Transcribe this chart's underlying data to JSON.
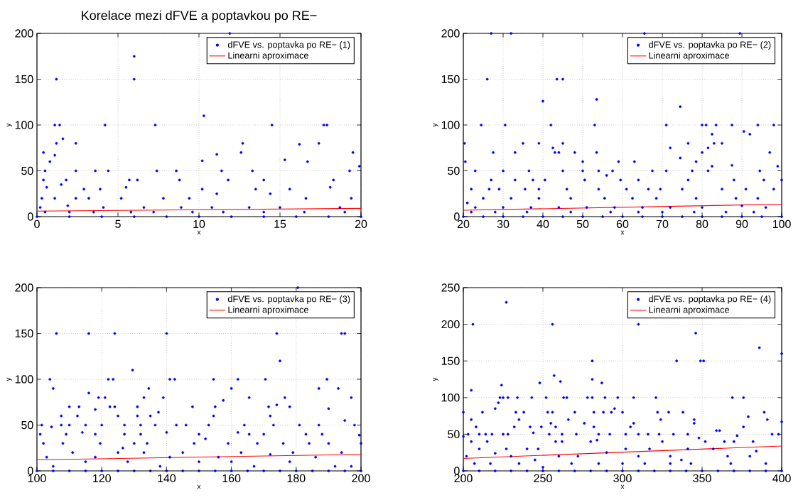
{
  "chart_data": [
    {
      "type": "scatter",
      "title": "Korelace mezi dFVE a poptavkou po RE−",
      "xlabel": "x",
      "ylabel": "y",
      "xlim": [
        0,
        20
      ],
      "ylim": [
        0,
        200
      ],
      "xticks": [
        0,
        5,
        10,
        15,
        20
      ],
      "yticks": [
        0,
        50,
        100,
        150,
        200
      ],
      "grid": true,
      "legend": "top right",
      "series": [
        {
          "name": "dFVE vs. poptavka po RE− (1)",
          "color": "#0000ff",
          "marker": "circle",
          "x": [
            1.2,
            6,
            6,
            11.9,
            1.1,
            1.4,
            4.2,
            7.3,
            10.3,
            14.5,
            17.7,
            17.9,
            1.6,
            1.2,
            2.4,
            12.7,
            17.4,
            16.2,
            0.4,
            1.1,
            0.8,
            10.2,
            11.1,
            12.6,
            15.3,
            16.7,
            19.5,
            19.9,
            0.5,
            2.4,
            3.6,
            4.4,
            7.4,
            8.6,
            11.4,
            13.3,
            19.3,
            0.4,
            1.8,
            5.7,
            6.2,
            8.8,
            11.8,
            14,
            18.3,
            0.6,
            1.5,
            2.9,
            3.9,
            5.5,
            10.2,
            13.5,
            15.6,
            18.1,
            0.3,
            1.1,
            2.4,
            3.2,
            5.2,
            7.8,
            9.4,
            11.1,
            14.4,
            16.6,
            19.4,
            0.2,
            1.9,
            4.1,
            6.6,
            8.9,
            10.8,
            13.1,
            15,
            18.7,
            0.5,
            2,
            3.5,
            5.8,
            7.2,
            9.6,
            11.5,
            14,
            16.5,
            19,
            0,
            2,
            4,
            6,
            8,
            10,
            12,
            14,
            16,
            18,
            20
          ],
          "values": [
            150,
            175,
            150,
            200,
            100,
            100,
            100,
            100,
            110,
            100,
            100,
            100,
            85,
            80,
            80,
            80,
            80,
            79,
            70,
            67,
            60,
            61,
            68,
            70,
            62,
            60,
            70,
            55,
            50,
            50,
            50,
            50,
            50,
            50,
            50,
            50,
            50,
            40,
            40,
            40,
            40,
            40,
            40,
            40,
            40,
            32,
            35,
            30,
            30,
            32,
            30,
            30,
            30,
            32,
            20,
            20,
            20,
            20,
            20,
            20,
            20,
            25,
            25,
            20,
            20,
            10,
            12,
            10,
            10,
            10,
            10,
            10,
            10,
            10,
            5,
            5,
            5,
            5,
            5,
            5,
            5,
            5,
            5,
            5,
            0,
            0,
            0,
            0,
            0,
            0,
            0,
            0,
            0,
            0,
            0
          ]
        },
        {
          "type": "line",
          "name": "Linearni aproximace",
          "color": "#ff0000",
          "marker": "none",
          "line_style": "solid",
          "x": [
            0,
            20
          ],
          "values": [
            6,
            9
          ]
        }
      ]
    },
    {
      "type": "scatter",
      "xlabel": "x",
      "ylabel": "y",
      "xlim": [
        20,
        100
      ],
      "ylim": [
        0,
        200
      ],
      "xticks": [
        20,
        30,
        40,
        50,
        60,
        70,
        80,
        90,
        100
      ],
      "yticks": [
        0,
        50,
        100,
        150,
        200
      ],
      "grid": true,
      "legend": "top right",
      "series": [
        {
          "name": "dFVE vs. poptavka po RE− (2)",
          "color": "#0000ff",
          "marker": "circle",
          "x": [
            27,
            32,
            65.5,
            89.5,
            26,
            43.5,
            45,
            53.5,
            40,
            74.5,
            24.5,
            30.5,
            42,
            53,
            71,
            80,
            81,
            83.5,
            87.5,
            94,
            98,
            90.5,
            82.5,
            92,
            20.3,
            35,
            39,
            45,
            76.5,
            83,
            85,
            42.5,
            72,
            81.5,
            27.5,
            33,
            43,
            44,
            48,
            53.5,
            80,
            97,
            74.5,
            20.5,
            50,
            59,
            63,
            78.5,
            82.5,
            99,
            87.5,
            23,
            30,
            36.5,
            45,
            50,
            54,
            57.5,
            67.5,
            71,
            77.5,
            81.5,
            94.5,
            27,
            33,
            37.5,
            40.5,
            50.5,
            59.5,
            64,
            76.5,
            88,
            95.5,
            100,
            56,
            22,
            26.5,
            29,
            35.5,
            39,
            46,
            54,
            61,
            66.5,
            69.5,
            75,
            85,
            91,
            98,
            25,
            32,
            39,
            47,
            55.5,
            62.5,
            68.5,
            78.5,
            88.5,
            94,
            21,
            23,
            30,
            37,
            44,
            51,
            58,
            65,
            72,
            80,
            96,
            90,
            22,
            28,
            36,
            47,
            57,
            64,
            70,
            78,
            86,
            93,
            20,
            25,
            30,
            35,
            40,
            45,
            50,
            55,
            60,
            65,
            70,
            75,
            80,
            85,
            90,
            95,
            100
          ],
          "values": [
            200,
            200,
            200,
            200,
            150,
            150,
            150,
            128,
            126,
            120,
            100,
            100,
            100,
            100,
            100,
            100,
            100,
            100,
            100,
            100,
            100,
            93,
            90,
            90,
            80,
            80,
            80,
            80,
            80,
            80,
            80,
            75,
            75,
            75,
            70,
            70,
            70,
            70,
            70,
            70,
            70,
            70,
            64,
            60,
            60,
            60,
            60,
            60,
            55,
            55,
            56,
            50,
            50,
            50,
            50,
            50,
            50,
            50,
            50,
            50,
            50,
            50,
            50,
            40,
            40,
            40,
            40,
            40,
            40,
            40,
            40,
            40,
            40,
            40,
            45,
            30,
            30,
            30,
            30,
            30,
            30,
            30,
            30,
            30,
            30,
            30,
            30,
            30,
            30,
            20,
            20,
            20,
            20,
            20,
            20,
            20,
            20,
            20,
            20,
            15,
            10,
            10,
            10,
            10,
            10,
            10,
            10,
            10,
            10,
            10,
            12,
            5,
            5,
            5,
            5,
            5,
            5,
            5,
            5,
            5,
            5,
            0,
            0,
            0,
            0,
            0,
            0,
            0,
            0,
            0,
            0,
            0,
            0,
            0,
            0,
            0,
            0,
            0
          ]
        },
        {
          "type": "line",
          "name": "Linearni aproximace",
          "color": "#ff0000",
          "marker": "none",
          "line_style": "solid",
          "x": [
            20,
            100
          ],
          "values": [
            7,
            13.5
          ]
        }
      ]
    },
    {
      "type": "scatter",
      "xlabel": "x",
      "ylabel": "y",
      "xlim": [
        100,
        200
      ],
      "ylim": [
        0,
        200
      ],
      "xticks": [
        100,
        120,
        140,
        160,
        180,
        200
      ],
      "yticks": [
        0,
        50,
        100,
        150,
        200
      ],
      "grid": true,
      "legend": "top right",
      "series": [
        {
          "name": "dFVE vs. poptavka po RE− (3)",
          "color": "#0000ff",
          "marker": "circle",
          "x": [
            180.5,
            106,
            116,
            124,
            140,
            174,
            194,
            195,
            175,
            129.5,
            104,
            122,
            123.5,
            141,
            142.5,
            154.5,
            162,
            170.5,
            189.5,
            105,
            134.5,
            160,
            187,
            193,
            116,
            119,
            121,
            133,
            139,
            165.5,
            176.5,
            197,
            157.5,
            110,
            113,
            122.5,
            124,
            131,
            148,
            155,
            171.5,
            178,
            174,
            190,
            118,
            137.5,
            107.5,
            112.5,
            125,
            131,
            135,
            154.5,
            172,
            195,
            101.5,
            107.5,
            110,
            115,
            120,
            127,
            132,
            136.5,
            143,
            146,
            153,
            164,
            173,
            181,
            187,
            198,
            104.5,
            101,
            109,
            118,
            127,
            132,
            150,
            165.5,
            170,
            183,
            188,
            114,
            140,
            162,
            199.5,
            102,
            108,
            119.5,
            130,
            134,
            148.5,
            159,
            168,
            176,
            184,
            190,
            200,
            126.5,
            152,
            111,
            125,
            133,
            145,
            163,
            179,
            194,
            172,
            103,
            118,
            141,
            156,
            186,
            115,
            128,
            150,
            160,
            178,
            105,
            138,
            167,
            192,
            197,
            100,
            105,
            110,
            115,
            120,
            125,
            130,
            135,
            140,
            145,
            150,
            155,
            160,
            165,
            170,
            175,
            180,
            185,
            190,
            195,
            200
          ],
          "values": [
            200,
            150,
            150,
            150,
            150,
            150,
            150,
            150,
            120,
            110,
            100,
            100,
            100,
            100,
            100,
            100,
            100,
            100,
            100,
            90,
            90,
            90,
            90,
            90,
            85,
            80,
            80,
            80,
            80,
            80,
            80,
            80,
            77,
            70,
            70,
            70,
            70,
            70,
            70,
            70,
            70,
            70,
            72,
            68,
            67,
            64,
            60,
            60,
            60,
            60,
            60,
            60,
            60,
            55,
            50,
            50,
            50,
            50,
            50,
            50,
            50,
            50,
            50,
            50,
            50,
            50,
            50,
            50,
            50,
            50,
            48,
            40,
            40,
            40,
            40,
            40,
            40,
            40,
            40,
            40,
            40,
            42,
            42,
            42,
            39,
            30,
            30,
            30,
            30,
            30,
            30,
            30,
            30,
            30,
            30,
            30,
            30,
            25,
            35,
            20,
            20,
            20,
            20,
            20,
            20,
            20,
            18,
            15,
            15,
            15,
            15,
            15,
            10,
            10,
            10,
            10,
            10,
            5,
            5,
            5,
            5,
            5,
            0,
            0,
            0,
            0,
            0,
            0,
            0,
            0,
            0,
            0,
            0,
            0,
            0,
            0,
            0,
            0,
            0,
            0,
            0,
            0,
            0
          ]
        },
        {
          "type": "line",
          "name": "Linearni aproximace",
          "color": "#ff0000",
          "marker": "none",
          "line_style": "solid",
          "x": [
            100,
            200
          ],
          "values": [
            12,
            18
          ]
        }
      ]
    },
    {
      "type": "scatter",
      "xlabel": "x",
      "ylabel": "y",
      "xlim": [
        200,
        400
      ],
      "ylim": [
        0,
        250
      ],
      "xticks": [
        200,
        250,
        300,
        350,
        400
      ],
      "yticks": [
        0,
        50,
        100,
        150,
        200,
        250
      ],
      "grid": true,
      "legend": "top right",
      "series": [
        {
          "name": "dFVE vs. poptavka po RE− (4)",
          "color": "#0000ff",
          "marker": "circle",
          "x": [
            227,
            206,
            256,
            310,
            346,
            386,
            400,
            281,
            334,
            349,
            351,
            257,
            261,
            281,
            287,
            248,
            224,
            205,
            223,
            225,
            228,
            234,
            243,
            252,
            263,
            265,
            278,
            281,
            289,
            297,
            307,
            321,
            369,
            376,
            200,
            212,
            233,
            238,
            253,
            256,
            270,
            282,
            288,
            293,
            300,
            322,
            329,
            338,
            389,
            220,
            295,
            222,
            379,
            205,
            235,
            266,
            324,
            345,
            391,
            208,
            232,
            242,
            249,
            258,
            282,
            305,
            376,
            255,
            276,
            307,
            345,
            400,
            359,
            361,
            200,
            203,
            210,
            214,
            218,
            225,
            228,
            254,
            262,
            271,
            285,
            292,
            302,
            310,
            316,
            323,
            332,
            341,
            394,
            398,
            244,
            372,
            205,
            215,
            258,
            262,
            280,
            325,
            352,
            364,
            370,
            382,
            284,
            348,
            210,
            227,
            240,
            247,
            302,
            317,
            341,
            357,
            384,
            202,
            230,
            260,
            272,
            310,
            330,
            366,
            380,
            220,
            290,
            245,
            337,
            207,
            217,
            235,
            268,
            285,
            300,
            314,
            330,
            343,
            368,
            390,
            250,
            200,
            210,
            220,
            230,
            240,
            250,
            260,
            270,
            280,
            290,
            300,
            310,
            320,
            330,
            340,
            350,
            360,
            370,
            380,
            390,
            400
          ],
          "values": [
            230,
            200,
            200,
            200,
            188,
            168,
            160,
            150,
            150,
            150,
            150,
            130,
            122,
            125,
            120,
            120,
            117,
            110,
            100,
            100,
            100,
            100,
            100,
            100,
            100,
            100,
            100,
            100,
            100,
            100,
            100,
            100,
            100,
            100,
            80,
            80,
            80,
            80,
            80,
            80,
            80,
            80,
            80,
            80,
            80,
            80,
            80,
            80,
            80,
            85,
            85,
            93,
            74,
            70,
            70,
            70,
            70,
            70,
            70,
            60,
            60,
            60,
            60,
            60,
            60,
            60,
            60,
            65,
            65,
            65,
            65,
            67,
            55,
            55,
            47,
            50,
            50,
            50,
            50,
            50,
            50,
            50,
            50,
            50,
            50,
            50,
            50,
            50,
            50,
            50,
            50,
            50,
            50,
            50,
            52,
            48,
            40,
            40,
            40,
            40,
            40,
            40,
            40,
            40,
            40,
            40,
            42,
            45,
            30,
            30,
            30,
            30,
            30,
            30,
            30,
            30,
            27,
            20,
            20,
            20,
            20,
            20,
            20,
            20,
            20,
            24,
            25,
            15,
            15,
            10,
            10,
            10,
            10,
            10,
            10,
            10,
            10,
            10,
            10,
            10,
            5,
            0,
            0,
            0,
            0,
            0,
            0,
            0,
            0,
            0,
            0,
            0,
            0,
            0,
            0,
            0,
            0,
            0,
            0,
            0,
            0,
            0
          ]
        },
        {
          "type": "line",
          "name": "Linearni aproximace",
          "color": "#ff0000",
          "marker": "none",
          "line_style": "solid",
          "x": [
            200,
            400
          ],
          "values": [
            17,
            34
          ]
        }
      ]
    }
  ]
}
